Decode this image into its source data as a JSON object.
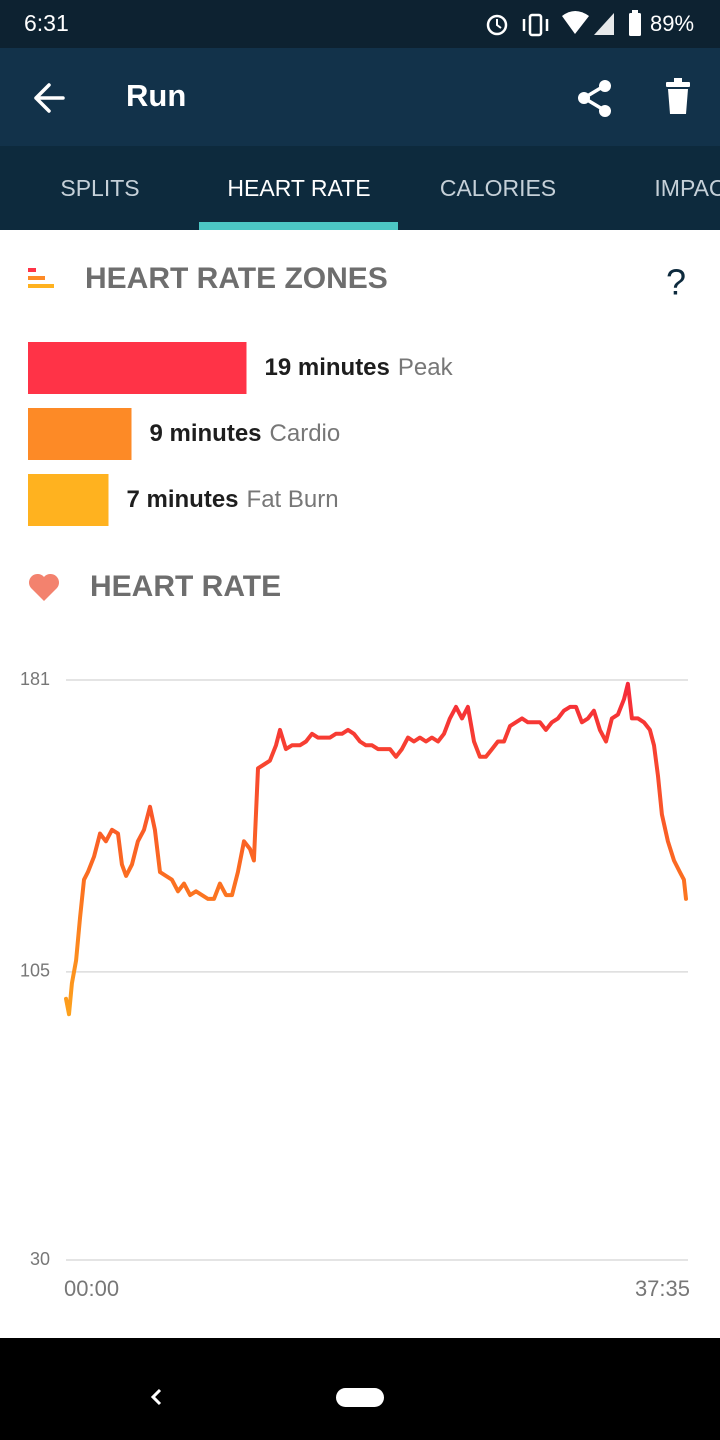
{
  "status_bar": {
    "time": "6:31",
    "battery": "89%"
  },
  "app_bar": {
    "title": "Run"
  },
  "tabs": [
    "SPLITS",
    "HEART RATE",
    "CALORIES",
    "IMPACT"
  ],
  "help": "?",
  "chart_data": [
    {
      "type": "bar",
      "title": "HEART RATE ZONES",
      "categories": [
        "Peak",
        "Cardio",
        "Fat Burn"
      ],
      "values": [
        19,
        9,
        7
      ],
      "value_labels": [
        "19 minutes",
        "9 minutes",
        "7 minutes"
      ],
      "colors": [
        "#ff3347",
        "#fd8a26",
        "#ffb21f"
      ]
    },
    {
      "type": "line",
      "title": "HEART RATE",
      "x": [
        0,
        0.18,
        0.36,
        0.61,
        0.85,
        1.09,
        1.33,
        1.7,
        2.06,
        2.42,
        2.79,
        3.15,
        3.39,
        3.64,
        4.0,
        4.36,
        4.73,
        5.09,
        5.39,
        5.7,
        6.06,
        6.42,
        6.79,
        7.15,
        7.52,
        7.88,
        8.24,
        8.61,
        8.97,
        9.33,
        9.7,
        10.06,
        10.42,
        10.79,
        11.15,
        11.39,
        11.64,
        12.0,
        12.36,
        12.73,
        12.97,
        13.33,
        13.7,
        14.18,
        14.55,
        14.91,
        15.27,
        15.64,
        16.0,
        16.36,
        16.73,
        17.09,
        17.45,
        17.82,
        18.18,
        18.55,
        18.91,
        19.27,
        19.64,
        20.0,
        20.36,
        20.73,
        21.09,
        21.45,
        21.82,
        22.18,
        22.55,
        22.91,
        23.27,
        23.64,
        24.0,
        24.36,
        24.73,
        25.09,
        25.45,
        25.82,
        26.18,
        26.55,
        26.91,
        27.27,
        27.64,
        28.0,
        28.36,
        28.73,
        29.09,
        29.45,
        29.82,
        30.18,
        30.55,
        30.91,
        31.27,
        31.64,
        32.0,
        32.36,
        32.73,
        33.09,
        33.45,
        33.82,
        34.06,
        34.3,
        34.67,
        35.03,
        35.39,
        35.64,
        35.88,
        36.12,
        36.48,
        36.85,
        37.21,
        37.45,
        37.58
      ],
      "values": [
        98,
        94,
        102,
        108,
        119,
        129,
        131,
        135,
        141,
        139,
        142,
        141,
        133,
        130,
        133,
        139,
        142,
        148,
        142,
        131,
        130,
        129,
        126,
        128,
        125,
        126,
        125,
        124,
        124,
        128,
        125,
        125,
        131,
        139,
        137,
        134,
        158,
        159,
        160,
        164,
        168,
        163,
        164,
        164,
        165,
        167,
        166,
        166,
        166,
        167,
        167,
        168,
        167,
        165,
        164,
        164,
        163,
        163,
        163,
        161,
        163,
        166,
        165,
        166,
        165,
        166,
        165,
        167,
        171,
        174,
        171,
        174,
        165,
        161,
        161,
        163,
        165,
        165,
        169,
        170,
        171,
        170,
        170,
        170,
        168,
        170,
        171,
        173,
        174,
        174,
        170,
        171,
        173,
        168,
        165,
        171,
        172,
        176,
        180,
        171,
        171,
        170,
        168,
        164,
        156,
        146,
        139,
        134,
        131,
        129,
        124
      ],
      "xlim": [
        0,
        37.58
      ],
      "xticks": [
        {
          "value": 0,
          "label": "00:00"
        },
        {
          "value": 37.58,
          "label": "37:35"
        }
      ],
      "ylim": [
        30,
        181
      ],
      "yticks": [
        30,
        105,
        181
      ],
      "grid": true
    }
  ]
}
